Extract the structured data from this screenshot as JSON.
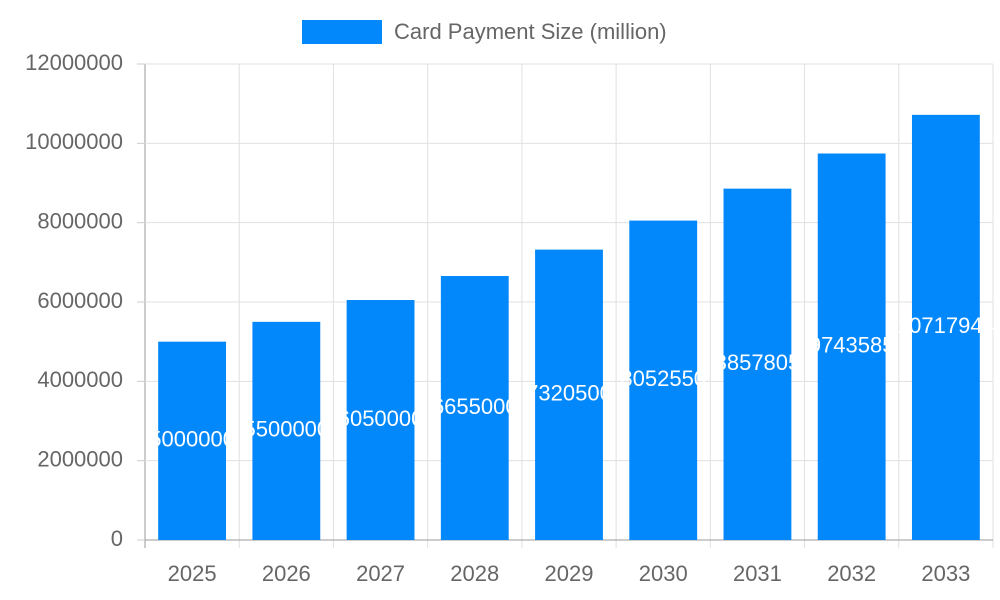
{
  "chart_data": {
    "type": "bar",
    "categories": [
      "2025",
      "2026",
      "2027",
      "2028",
      "2029",
      "2030",
      "2031",
      "2032",
      "2033"
    ],
    "series": [
      {
        "name": "Card Payment Size (million)",
        "color": "#0388fc",
        "values": [
          5000000,
          5500000,
          6050000,
          6655000,
          7320500,
          8052550,
          8857805,
          9743585,
          10717944
        ]
      }
    ],
    "ylim": [
      0,
      12000000
    ],
    "yticks": [
      0,
      2000000,
      4000000,
      6000000,
      8000000,
      10000000,
      12000000
    ],
    "grid": true,
    "legend": "top"
  }
}
